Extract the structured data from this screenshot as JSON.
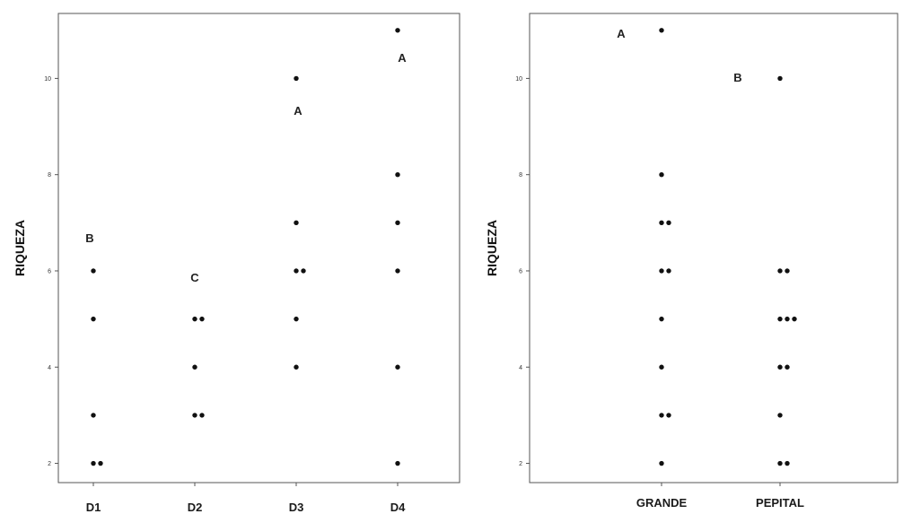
{
  "chart_data": [
    {
      "type": "scatter",
      "ylabel": "RIQUEZA",
      "xlabel": "",
      "categories": [
        "D1",
        "D2",
        "D3",
        "D4"
      ],
      "yticks": [
        2,
        4,
        6,
        8,
        10
      ],
      "ylim": [
        1.6,
        11.35
      ],
      "grid": false,
      "points": [
        {
          "category": "D1",
          "y": 2,
          "count": 2
        },
        {
          "category": "D1",
          "y": 3,
          "count": 1
        },
        {
          "category": "D1",
          "y": 5,
          "count": 1
        },
        {
          "category": "D1",
          "y": 6,
          "count": 1
        },
        {
          "category": "D2",
          "y": 3,
          "count": 2
        },
        {
          "category": "D2",
          "y": 4,
          "count": 1
        },
        {
          "category": "D2",
          "y": 5,
          "count": 2
        },
        {
          "category": "D3",
          "y": 4,
          "count": 1
        },
        {
          "category": "D3",
          "y": 5,
          "count": 1
        },
        {
          "category": "D3",
          "y": 6,
          "count": 2
        },
        {
          "category": "D3",
          "y": 7,
          "count": 1
        },
        {
          "category": "D3",
          "y": 10,
          "count": 1
        },
        {
          "category": "D4",
          "y": 2,
          "count": 1
        },
        {
          "category": "D4",
          "y": 4,
          "count": 1
        },
        {
          "category": "D4",
          "y": 6,
          "count": 1
        },
        {
          "category": "D4",
          "y": 7,
          "count": 1
        },
        {
          "category": "D4",
          "y": 8,
          "count": 1
        },
        {
          "category": "D4",
          "y": 11,
          "count": 1
        }
      ],
      "annotations": [
        {
          "category": "D1",
          "text": "B"
        },
        {
          "category": "D2",
          "text": "C"
        },
        {
          "category": "D3",
          "text": "A"
        },
        {
          "category": "D4",
          "text": "A"
        }
      ]
    },
    {
      "type": "scatter",
      "ylabel": "RIQUEZA",
      "xlabel": "",
      "categories": [
        "GRANDE",
        "PEPITAL"
      ],
      "yticks": [
        2,
        4,
        6,
        8,
        10
      ],
      "ylim": [
        1.6,
        11.35
      ],
      "grid": false,
      "points": [
        {
          "category": "GRANDE",
          "y": 2,
          "count": 1
        },
        {
          "category": "GRANDE",
          "y": 3,
          "count": 2
        },
        {
          "category": "GRANDE",
          "y": 4,
          "count": 1
        },
        {
          "category": "GRANDE",
          "y": 5,
          "count": 1
        },
        {
          "category": "GRANDE",
          "y": 6,
          "count": 2
        },
        {
          "category": "GRANDE",
          "y": 7,
          "count": 2
        },
        {
          "category": "GRANDE",
          "y": 8,
          "count": 1
        },
        {
          "category": "GRANDE",
          "y": 11,
          "count": 1
        },
        {
          "category": "PEPITAL",
          "y": 2,
          "count": 2
        },
        {
          "category": "PEPITAL",
          "y": 3,
          "count": 1
        },
        {
          "category": "PEPITAL",
          "y": 4,
          "count": 2
        },
        {
          "category": "PEPITAL",
          "y": 5,
          "count": 3
        },
        {
          "category": "PEPITAL",
          "y": 6,
          "count": 2
        },
        {
          "category": "PEPITAL",
          "y": 10,
          "count": 1
        }
      ],
      "annotations": [
        {
          "category": "GRANDE",
          "text": "A"
        },
        {
          "category": "PEPITAL",
          "text": "B"
        }
      ]
    }
  ]
}
